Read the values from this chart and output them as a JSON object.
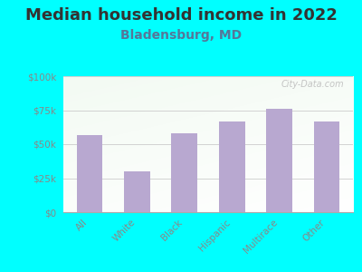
{
  "title": "Median household income in 2022",
  "subtitle": "Bladensburg, MD",
  "categories": [
    "All",
    "White",
    "Black",
    "Hispanic",
    "Multirace",
    "Other"
  ],
  "values": [
    57000,
    30000,
    58000,
    67000,
    76000,
    67000
  ],
  "bar_color": "#b8a8d0",
  "ylim": [
    0,
    100000
  ],
  "yticks": [
    0,
    25000,
    50000,
    75000,
    100000
  ],
  "ytick_labels": [
    "$0",
    "$25k",
    "$50k",
    "$75k",
    "$100k"
  ],
  "background_outer": "#00ffff",
  "title_fontsize": 13,
  "subtitle_fontsize": 10,
  "subtitle_color": "#557799",
  "title_color": "#333333",
  "watermark": "City-Data.com",
  "grid_color": "#cccccc",
  "tick_label_color": "#888888",
  "spine_color": "#aaaaaa"
}
